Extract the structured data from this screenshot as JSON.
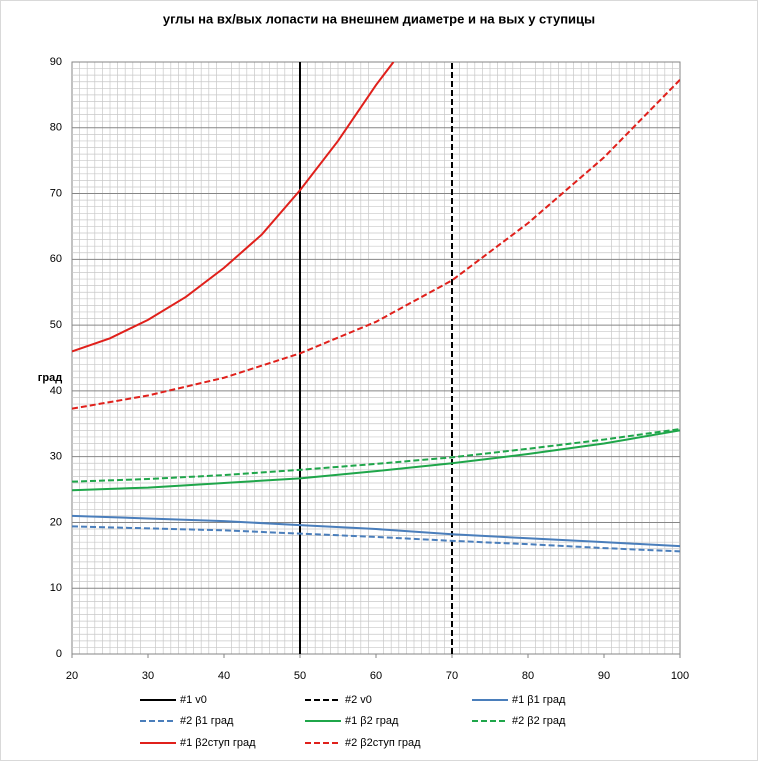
{
  "chart_data": {
    "type": "line",
    "title": "углы на вх/вых лопасти на внешнем диаметре и на вых у ступицы",
    "y_label": "град",
    "xlim": [
      20,
      100
    ],
    "xticks": [
      20,
      30,
      40,
      50,
      60,
      70,
      80,
      90,
      100
    ],
    "ylim": [
      0,
      90
    ],
    "yticks": [
      0,
      10,
      20,
      30,
      40,
      50,
      60,
      70,
      80,
      90
    ],
    "grid": true,
    "minor_grid": true,
    "legend": "bottom",
    "series": [
      {
        "name": "#1 v0",
        "color": "#000000",
        "dashed": false,
        "x": [
          50,
          50
        ],
        "values": [
          0,
          90
        ]
      },
      {
        "name": "#2 v0",
        "color": "#000000",
        "dashed": true,
        "x": [
          70,
          70
        ],
        "values": [
          0,
          90
        ]
      },
      {
        "name": "#1 β1 град",
        "color": "#4a7ebb",
        "dashed": false,
        "x": [
          20,
          30,
          40,
          50,
          60,
          70,
          80,
          90,
          100
        ],
        "values": [
          21.0,
          20.6,
          20.2,
          19.6,
          19.0,
          18.2,
          17.6,
          17.0,
          16.4
        ]
      },
      {
        "name": "#2 β1 град",
        "color": "#4a7ebb",
        "dashed": true,
        "x": [
          20,
          30,
          40,
          50,
          60,
          70,
          80,
          90,
          100
        ],
        "values": [
          19.4,
          19.1,
          18.8,
          18.3,
          17.8,
          17.2,
          16.7,
          16.1,
          15.6
        ]
      },
      {
        "name": "#1 β2 град",
        "color": "#1fa64a",
        "dashed": false,
        "x": [
          20,
          30,
          40,
          50,
          60,
          70,
          80,
          90,
          100
        ],
        "values": [
          24.9,
          25.3,
          26.0,
          26.7,
          27.8,
          29.0,
          30.4,
          32.0,
          34.0
        ]
      },
      {
        "name": "#2 β2 град",
        "color": "#1fa64a",
        "dashed": true,
        "x": [
          20,
          30,
          40,
          50,
          60,
          70,
          80,
          90,
          100
        ],
        "values": [
          26.2,
          26.6,
          27.2,
          28.0,
          28.9,
          29.9,
          31.2,
          32.6,
          34.2
        ]
      },
      {
        "name": "#1 β2ступ град",
        "color": "#e0201b",
        "dashed": false,
        "x": [
          20,
          25,
          30,
          35,
          40,
          45,
          50,
          55,
          60,
          62.3
        ],
        "values": [
          46.0,
          48.0,
          50.8,
          54.3,
          58.7,
          63.8,
          70.5,
          78.0,
          86.5,
          90.0
        ]
      },
      {
        "name": "#2 β2ступ град",
        "color": "#e0201b",
        "dashed": true,
        "x": [
          20,
          30,
          40,
          50,
          60,
          70,
          80,
          90,
          100
        ],
        "values": [
          37.3,
          39.3,
          42.0,
          45.7,
          50.5,
          56.8,
          65.5,
          75.5,
          87.3
        ]
      }
    ]
  }
}
